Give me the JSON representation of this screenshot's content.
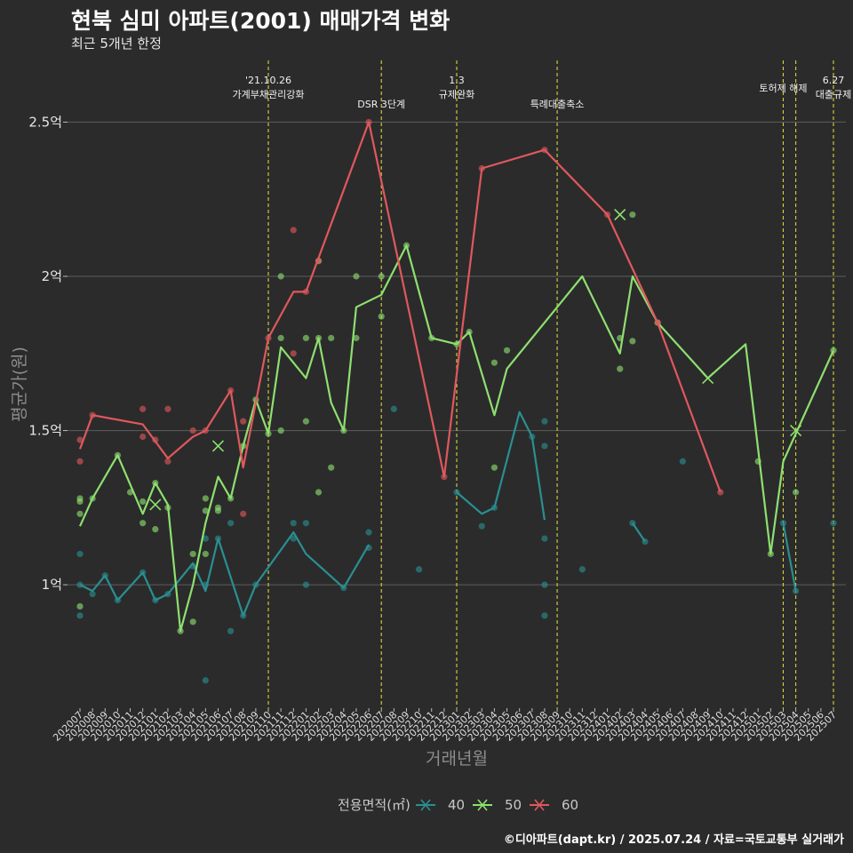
{
  "header": {
    "title": "현북 심미 아파트(2001) 매매가격 변화",
    "subtitle": "최근 5개년 한정",
    "caption": "©디아파트(dapt.kr) / 2025.07.24 / 자료=국토교통부 실거래가"
  },
  "colors": {
    "background": "#2b2b2c",
    "s40": "#2a8f91",
    "s50": "#8ee06f",
    "s60": "#e0585c",
    "event": "#d6d33a",
    "grid": "#5c5c5c"
  },
  "chart_data": {
    "type": "line",
    "xlabel": "거래년월",
    "ylabel": "평균가(원)",
    "ylim": [
      0.6,
      2.7
    ],
    "yticks": [
      1.0,
      1.5,
      2.0,
      2.5
    ],
    "ytick_labels": [
      "1억",
      "1.5억",
      "2억",
      "2.5억"
    ],
    "categories": [
      "202007",
      "202008",
      "202009",
      "202010",
      "202011",
      "202012",
      "202101",
      "202102",
      "202103",
      "202104",
      "202105",
      "202106",
      "202107",
      "202108",
      "202109",
      "202110",
      "202111",
      "202112",
      "202201",
      "202202",
      "202203",
      "202204",
      "202205",
      "202206",
      "202207",
      "202208",
      "202209",
      "202210",
      "202211",
      "202212",
      "202301",
      "202302",
      "202303",
      "202304",
      "202305",
      "202306",
      "202307",
      "202308",
      "202309",
      "202310",
      "202311",
      "202312",
      "202401",
      "202402",
      "202403",
      "202404",
      "202405",
      "202406",
      "202407",
      "202408",
      "202409",
      "202410",
      "202411",
      "202412",
      "202501",
      "202502",
      "202503",
      "202504",
      "202505",
      "202506",
      "202507"
    ],
    "legend_title": "전용면적(㎡)",
    "legend_position": "bottom",
    "grid": true,
    "series": [
      {
        "name": "40",
        "color": "#2a8f91",
        "line": [
          [
            0,
            1.0
          ],
          [
            1,
            0.98
          ],
          [
            2,
            1.03
          ],
          [
            3,
            0.95
          ],
          [
            5,
            1.04
          ],
          [
            6,
            0.95
          ],
          [
            7,
            0.97
          ],
          [
            9,
            1.07
          ],
          [
            10,
            0.98
          ],
          [
            11,
            1.15
          ],
          [
            13,
            0.9
          ],
          [
            14,
            1.0
          ],
          [
            17,
            1.17
          ],
          [
            18,
            1.1
          ],
          [
            21,
            0.99
          ],
          [
            23,
            1.13
          ],
          [
            null,
            null
          ],
          [
            30,
            1.3
          ],
          [
            32,
            1.23
          ],
          [
            33,
            1.25
          ],
          [
            35,
            1.56
          ],
          [
            36,
            1.48
          ],
          [
            37,
            1.21
          ],
          [
            null,
            null
          ],
          [
            44,
            1.2
          ],
          [
            45,
            1.14
          ],
          [
            null,
            null
          ],
          [
            56,
            1.2
          ],
          [
            57,
            0.98
          ]
        ],
        "points": [
          [
            0,
            0.9
          ],
          [
            0,
            1.1
          ],
          [
            0,
            1.0
          ],
          [
            1,
            0.97
          ],
          [
            2,
            1.03
          ],
          [
            3,
            0.95
          ],
          [
            5,
            1.04
          ],
          [
            6,
            0.95
          ],
          [
            7,
            0.97
          ],
          [
            9,
            1.06
          ],
          [
            10,
            0.69
          ],
          [
            10,
            1.0
          ],
          [
            10,
            1.15
          ],
          [
            11,
            1.15
          ],
          [
            12,
            1.2
          ],
          [
            12,
            0.85
          ],
          [
            13,
            0.9
          ],
          [
            14,
            1.0
          ],
          [
            17,
            1.2
          ],
          [
            17,
            1.15
          ],
          [
            18,
            1.2
          ],
          [
            18,
            1.0
          ],
          [
            21,
            0.99
          ],
          [
            23,
            1.17
          ],
          [
            23,
            1.12
          ],
          [
            25,
            1.57
          ],
          [
            27,
            1.05
          ],
          [
            30,
            1.3
          ],
          [
            32,
            1.19
          ],
          [
            33,
            1.25
          ],
          [
            36,
            1.48
          ],
          [
            37,
            1.53
          ],
          [
            37,
            1.45
          ],
          [
            37,
            1.15
          ],
          [
            37,
            1.0
          ],
          [
            37,
            0.9
          ],
          [
            40,
            1.05
          ],
          [
            44,
            1.2
          ],
          [
            45,
            1.14
          ],
          [
            48,
            1.4
          ],
          [
            56,
            1.2
          ],
          [
            57,
            0.98
          ],
          [
            60,
            1.2
          ]
        ],
        "cross": []
      },
      {
        "name": "50",
        "color": "#8ee06f",
        "line": [
          [
            0,
            1.19
          ],
          [
            1,
            1.28
          ],
          [
            3,
            1.42
          ],
          [
            5,
            1.23
          ],
          [
            6,
            1.33
          ],
          [
            7,
            1.26
          ],
          [
            8,
            0.85
          ],
          [
            9,
            1.0
          ],
          [
            10,
            1.2
          ],
          [
            11,
            1.35
          ],
          [
            12,
            1.28
          ],
          [
            13,
            1.45
          ],
          [
            14,
            1.6
          ],
          [
            15,
            1.49
          ],
          [
            16,
            1.77
          ],
          [
            18,
            1.67
          ],
          [
            19,
            1.8
          ],
          [
            20,
            1.59
          ],
          [
            21,
            1.5
          ],
          [
            22,
            1.9
          ],
          [
            24,
            1.94
          ],
          [
            26,
            2.1
          ],
          [
            28,
            1.8
          ],
          [
            30,
            1.78
          ],
          [
            31,
            1.82
          ],
          [
            33,
            1.55
          ],
          [
            34,
            1.7
          ],
          [
            40,
            2.0
          ],
          [
            43,
            1.75
          ],
          [
            44,
            2.0
          ],
          [
            46,
            1.85
          ],
          [
            50,
            1.67
          ],
          [
            53,
            1.78
          ],
          [
            55,
            1.1
          ],
          [
            56,
            1.4
          ],
          [
            60,
            1.76
          ]
        ],
        "points": [
          [
            0,
            1.28
          ],
          [
            0,
            1.27
          ],
          [
            0,
            1.23
          ],
          [
            0,
            0.93
          ],
          [
            1,
            1.28
          ],
          [
            3,
            1.42
          ],
          [
            4,
            1.3
          ],
          [
            5,
            1.27
          ],
          [
            5,
            1.2
          ],
          [
            6,
            1.33
          ],
          [
            6,
            1.18
          ],
          [
            7,
            1.25
          ],
          [
            8,
            0.85
          ],
          [
            9,
            1.1
          ],
          [
            9,
            0.88
          ],
          [
            10,
            1.28
          ],
          [
            10,
            1.24
          ],
          [
            10,
            1.1
          ],
          [
            11,
            1.25
          ],
          [
            11,
            1.24
          ],
          [
            12,
            1.28
          ],
          [
            13,
            1.45
          ],
          [
            14,
            1.6
          ],
          [
            15,
            1.49
          ],
          [
            16,
            2.0
          ],
          [
            16,
            1.8
          ],
          [
            16,
            1.5
          ],
          [
            18,
            1.8
          ],
          [
            18,
            1.53
          ],
          [
            19,
            2.05
          ],
          [
            19,
            1.8
          ],
          [
            19,
            1.3
          ],
          [
            20,
            1.8
          ],
          [
            20,
            1.38
          ],
          [
            21,
            1.5
          ],
          [
            22,
            2.0
          ],
          [
            22,
            1.8
          ],
          [
            24,
            2.0
          ],
          [
            24,
            1.87
          ],
          [
            26,
            2.1
          ],
          [
            28,
            1.8
          ],
          [
            30,
            1.78
          ],
          [
            31,
            1.82
          ],
          [
            33,
            1.72
          ],
          [
            33,
            1.38
          ],
          [
            34,
            1.76
          ],
          [
            43,
            1.8
          ],
          [
            43,
            1.7
          ],
          [
            44,
            2.2
          ],
          [
            44,
            1.79
          ],
          [
            46,
            1.85
          ],
          [
            54,
            1.4
          ],
          [
            55,
            1.1
          ],
          [
            57,
            1.3
          ],
          [
            60,
            1.76
          ]
        ],
        "cross": [
          [
            6,
            1.26
          ],
          [
            11,
            1.45
          ],
          [
            43,
            2.2
          ],
          [
            50,
            1.67
          ],
          [
            57,
            1.5
          ]
        ]
      },
      {
        "name": "60",
        "color": "#e0585c",
        "line": [
          [
            0,
            1.44
          ],
          [
            1,
            1.55
          ],
          [
            5,
            1.52
          ],
          [
            7,
            1.41
          ],
          [
            9,
            1.48
          ],
          [
            10,
            1.5
          ],
          [
            12,
            1.63
          ],
          [
            13,
            1.38
          ],
          [
            15,
            1.8
          ],
          [
            17,
            1.95
          ],
          [
            18,
            1.95
          ],
          [
            23,
            2.5
          ],
          [
            29,
            1.35
          ],
          [
            32,
            2.35
          ],
          [
            37,
            2.41
          ],
          [
            42,
            2.2
          ],
          [
            46,
            1.85
          ],
          [
            51,
            1.3
          ]
        ],
        "points": [
          [
            0,
            1.47
          ],
          [
            0,
            1.4
          ],
          [
            1,
            1.55
          ],
          [
            5,
            1.57
          ],
          [
            5,
            1.48
          ],
          [
            6,
            1.47
          ],
          [
            7,
            1.57
          ],
          [
            7,
            1.4
          ],
          [
            9,
            1.5
          ],
          [
            10,
            1.5
          ],
          [
            12,
            1.63
          ],
          [
            13,
            1.53
          ],
          [
            13,
            1.23
          ],
          [
            15,
            1.8
          ],
          [
            17,
            2.15
          ],
          [
            17,
            1.75
          ],
          [
            18,
            1.95
          ],
          [
            19,
            2.05
          ],
          [
            23,
            2.5
          ],
          [
            29,
            1.35
          ],
          [
            32,
            2.35
          ],
          [
            37,
            2.41
          ],
          [
            42,
            2.2
          ],
          [
            46,
            1.85
          ],
          [
            51,
            1.3
          ]
        ],
        "cross": []
      }
    ],
    "events": [
      {
        "x": 15,
        "lines": [
          "'21.10.26",
          "가계부채관리강화"
        ]
      },
      {
        "x": 24,
        "lines": [
          "DSR 3단계"
        ]
      },
      {
        "x": 30,
        "lines": [
          "1.3",
          "규제완화"
        ]
      },
      {
        "x": 38,
        "lines": [
          "특례대출축소"
        ]
      },
      {
        "x": 56,
        "lines": [
          "토허제 해제"
        ]
      },
      {
        "x": 57,
        "lines": []
      },
      {
        "x": 60,
        "lines": [
          "6.27",
          "대출규제"
        ]
      }
    ]
  }
}
